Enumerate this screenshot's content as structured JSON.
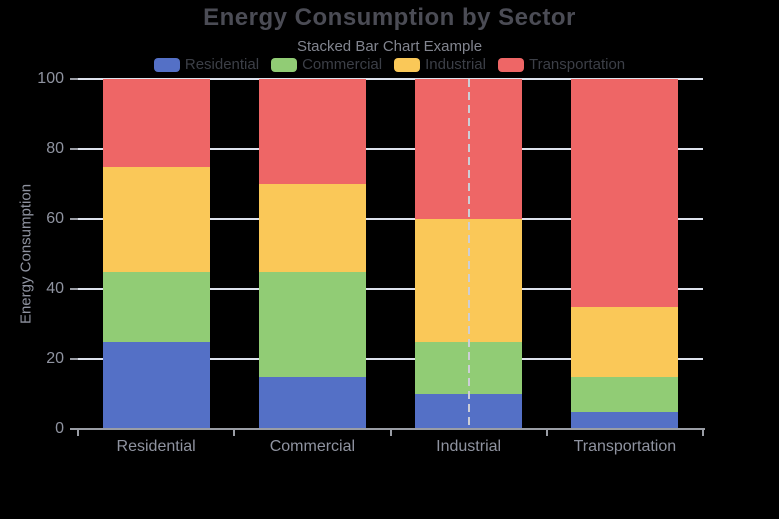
{
  "chart_data": {
    "type": "bar",
    "stacked": true,
    "title": "Energy Consumption by Sector",
    "subtitle": "Stacked Bar Chart Example",
    "xlabel": "",
    "ylabel": "Energy Consumption",
    "categories": [
      "Residential",
      "Commercial",
      "Industrial",
      "Transportation"
    ],
    "series": [
      {
        "name": "Residential",
        "color": "#5470c6",
        "values": [
          25,
          15,
          10,
          5
        ]
      },
      {
        "name": "Commercial",
        "color": "#91cc75",
        "values": [
          20,
          30,
          15,
          10
        ]
      },
      {
        "name": "Industrial",
        "color": "#fac858",
        "values": [
          30,
          25,
          35,
          20
        ]
      },
      {
        "name": "Transportation",
        "color": "#ee6666",
        "values": [
          25,
          30,
          40,
          65
        ]
      }
    ],
    "ylim": [
      0,
      100
    ],
    "yticks": [
      0,
      20,
      40,
      60,
      80,
      100
    ],
    "grid": true,
    "legend_position": "top-center",
    "hover_pointer": {
      "category": "Industrial",
      "category_index": 2,
      "style": "dashed-vertical-line"
    }
  },
  "colors": {
    "background": "#000000",
    "grid_line": "#dde2ed",
    "axis_line": "#9a9da5",
    "tick_label": "#8f93a0",
    "axis_name": "#8f93a0",
    "title_text": "#4b4c55",
    "subtitle_text": "#82858f",
    "legend_text": "#3c3f47",
    "pointer_line": "#ccced6"
  }
}
